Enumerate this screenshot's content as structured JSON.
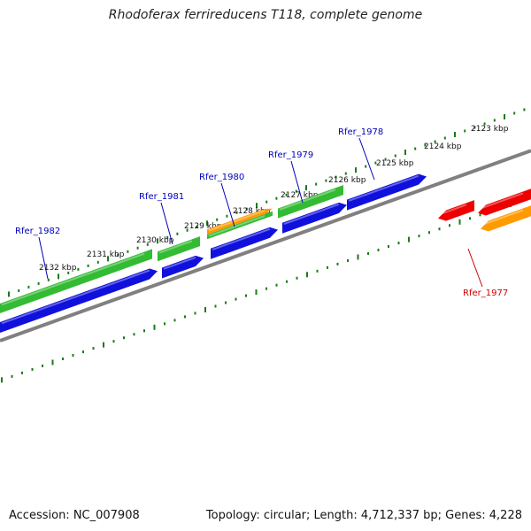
{
  "title": "Rhodoferax ferrireducens T118, complete genome",
  "footer": {
    "accession": "Accession: NC_007908",
    "summary": "Topology: circular; Length: 4,712,337 bp; Genes: 4,228"
  },
  "colors": {
    "backbone": "#808080",
    "tick": "#1a7a1a",
    "green_feature": "#33bb33",
    "blue_feature": "#1010dd",
    "orange_feature": "#ff9a00",
    "red_feature": "#ee0000",
    "label_blue": "#0000bb",
    "label_red": "#cc0000"
  },
  "scale_labels": [
    "2123 kbp",
    "2124 kbp",
    "2125 kbp",
    "2126 kbp",
    "2127 kbp",
    "2128 kbp",
    "2129 kbp",
    "2130 kbp",
    "2131 kbp",
    "2132 kbp"
  ],
  "gene_labels": [
    {
      "text": "Rfer_1982",
      "color": "blue"
    },
    {
      "text": "Rfer_1981",
      "color": "blue"
    },
    {
      "text": "Rfer_1980",
      "color": "blue"
    },
    {
      "text": "Rfer_1979",
      "color": "blue"
    },
    {
      "text": "Rfer_1978",
      "color": "blue"
    },
    {
      "text": "Rfer_1977",
      "color": "red"
    }
  ]
}
